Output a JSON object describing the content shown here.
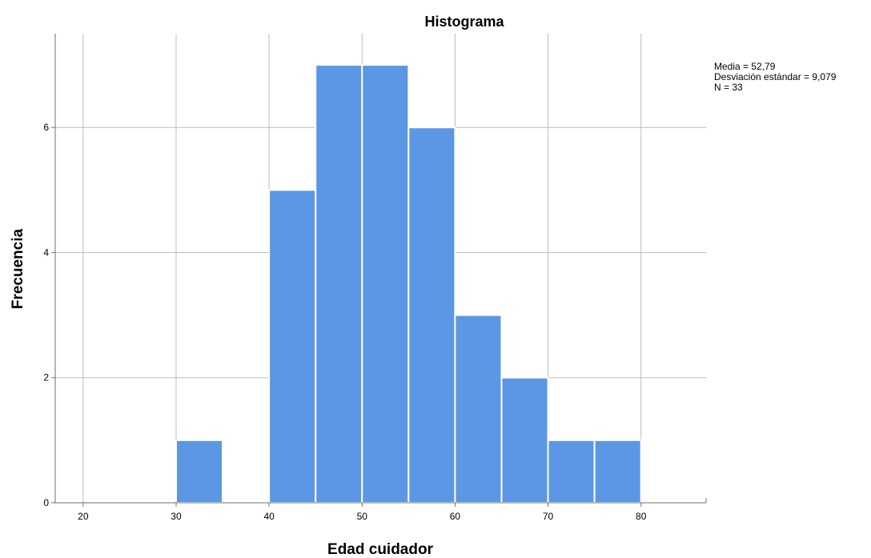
{
  "chart_data": {
    "type": "bar",
    "title": "Histograma",
    "xlabel": "Edad cuidador",
    "ylabel": "Frecuencia",
    "xlim": [
      17,
      87
    ],
    "ylim": [
      0,
      7.5
    ],
    "xticks": [
      20,
      30,
      40,
      50,
      60,
      70,
      80
    ],
    "yticks": [
      0,
      2,
      4,
      6
    ],
    "grid": true,
    "bins": [
      {
        "start": 30,
        "end": 35,
        "count": 1
      },
      {
        "start": 40,
        "end": 45,
        "count": 5
      },
      {
        "start": 45,
        "end": 50,
        "count": 7
      },
      {
        "start": 50,
        "end": 55,
        "count": 7
      },
      {
        "start": 55,
        "end": 60,
        "count": 6
      },
      {
        "start": 60,
        "end": 65,
        "count": 3
      },
      {
        "start": 65,
        "end": 70,
        "count": 2
      },
      {
        "start": 70,
        "end": 75,
        "count": 1
      },
      {
        "start": 75,
        "end": 80,
        "count": 1
      }
    ],
    "bar_color": "#5b97e5",
    "stats": {
      "mean_label": "Media = 52,79",
      "sd_label": "Desviación estándar = 9,079",
      "n_label": "N = 33"
    },
    "stats_placement": "top-right"
  }
}
